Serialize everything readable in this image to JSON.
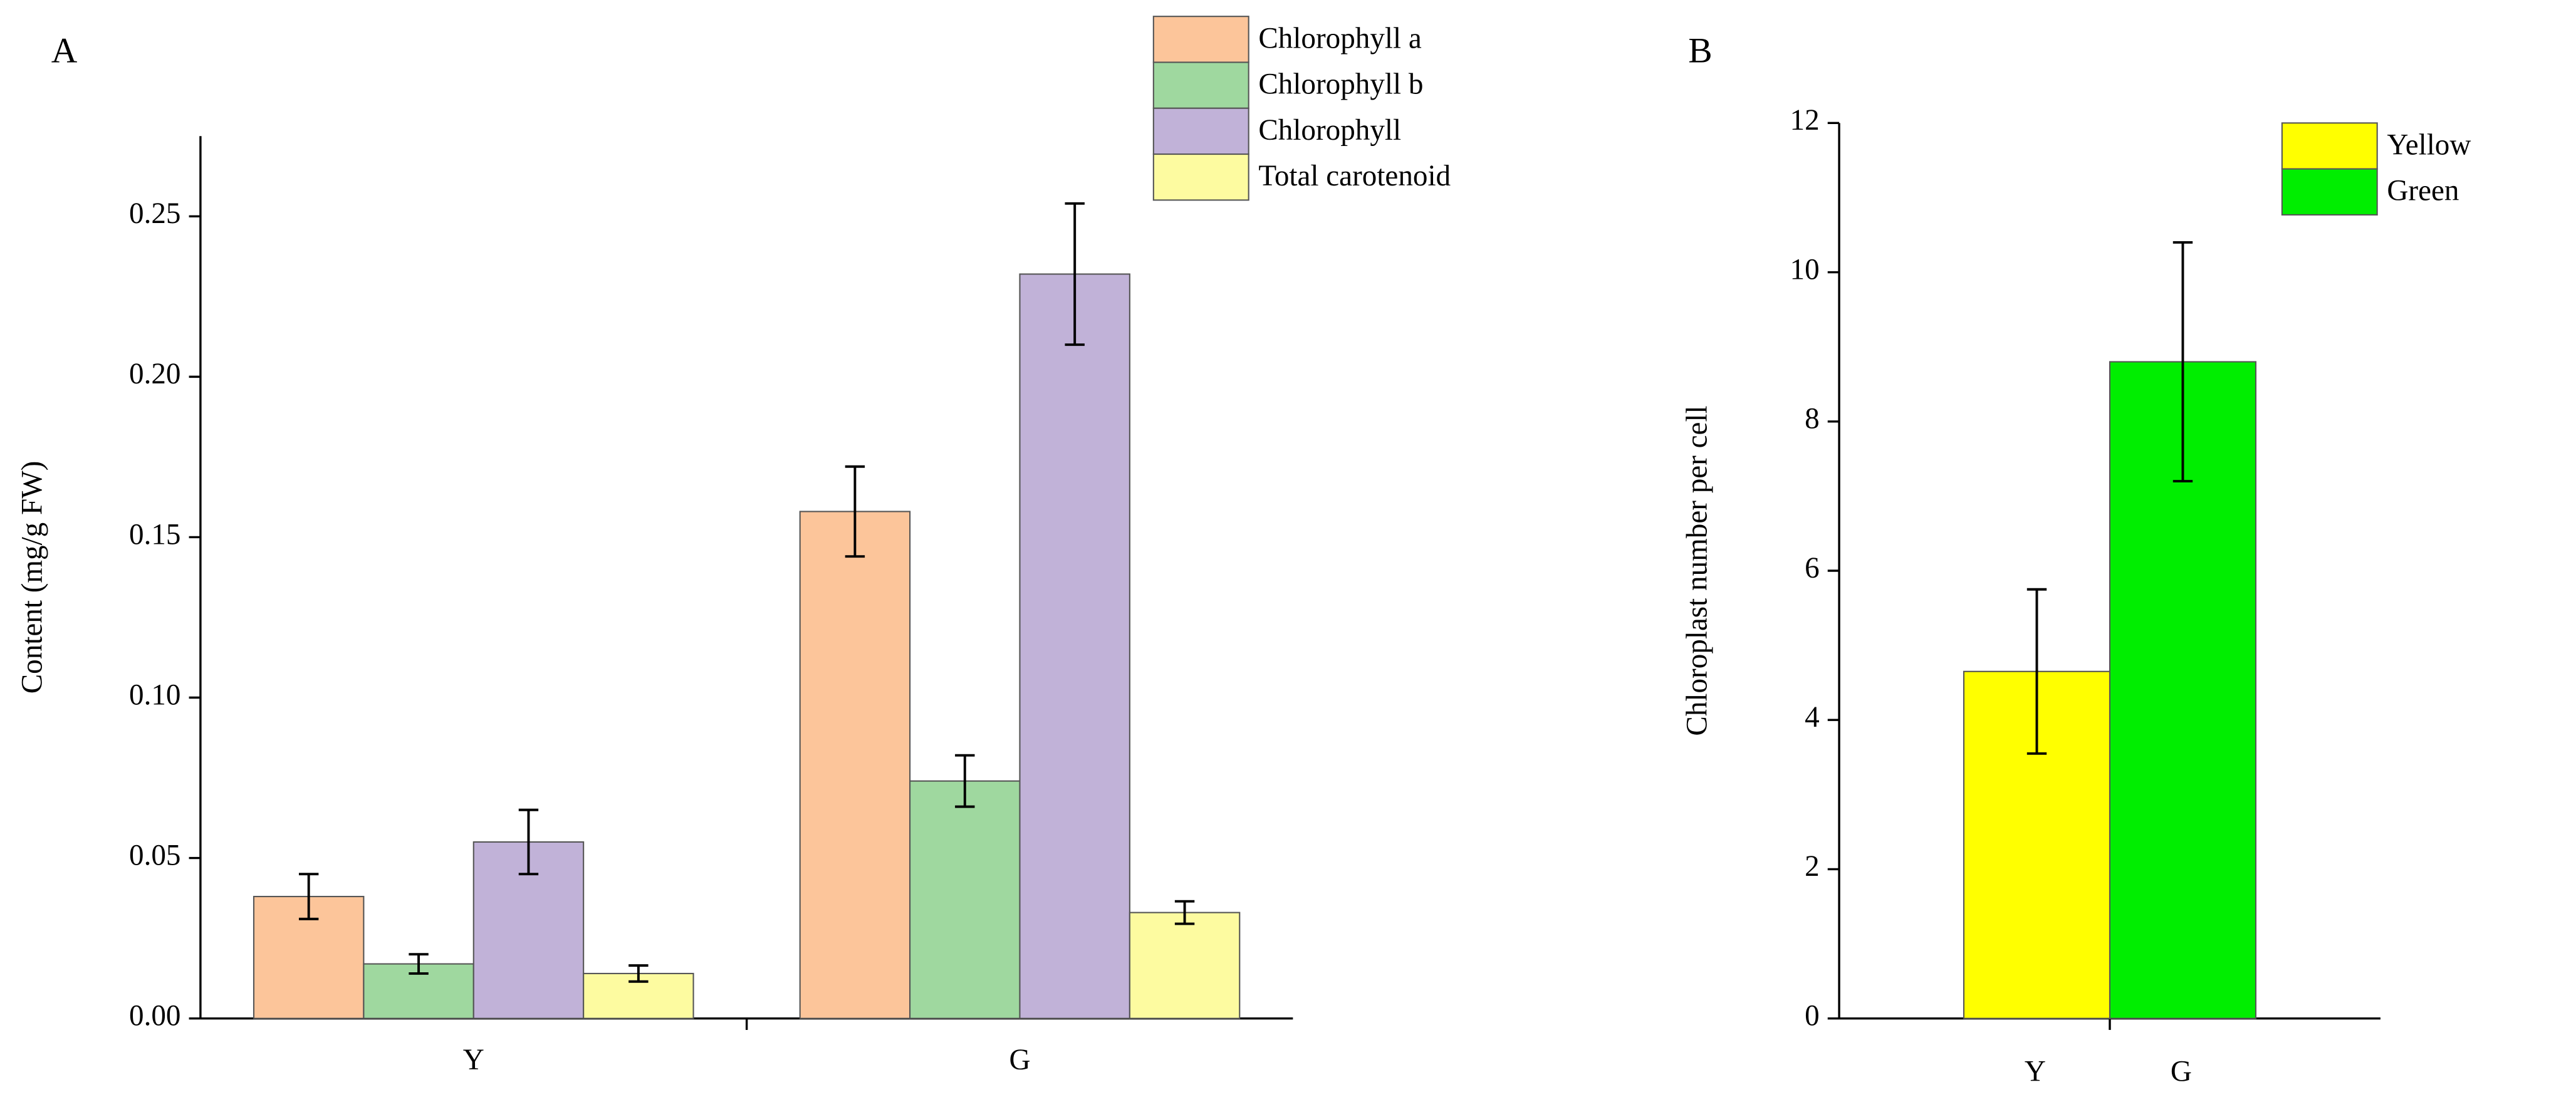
{
  "chart_data": [
    {
      "type": "bar",
      "panel_label": "A",
      "ylabel": "Content (mg/g FW)",
      "categories": [
        "Y",
        "G"
      ],
      "series": [
        {
          "name": "Chlorophyll a",
          "color": "#fcc59a",
          "values": [
            0.038,
            0.158
          ],
          "errors": [
            0.007,
            0.014
          ]
        },
        {
          "name": "Chlorophyll b",
          "color": "#9fd89f",
          "values": [
            0.017,
            0.074
          ],
          "errors": [
            0.003,
            0.008
          ]
        },
        {
          "name": "Chlorophyll",
          "color": "#c1b2d8",
          "values": [
            0.055,
            0.232
          ],
          "errors": [
            0.01,
            0.022
          ]
        },
        {
          "name": "Total carotenoid",
          "color": "#fdfba0",
          "values": [
            0.014,
            0.033
          ],
          "errors": [
            0.0025,
            0.0035
          ]
        }
      ],
      "ylim": [
        0,
        0.275
      ],
      "yticks": [
        {
          "value": 0,
          "label": "0.00"
        },
        {
          "value": 0.05,
          "label": "0.05"
        },
        {
          "value": 0.1,
          "label": "0.10"
        },
        {
          "value": 0.15,
          "label": "0.15"
        },
        {
          "value": 0.2,
          "label": "0.20"
        },
        {
          "value": 0.25,
          "label": "0.25"
        }
      ]
    },
    {
      "type": "bar",
      "panel_label": "B",
      "ylabel": "Chloroplast  number  per cell",
      "categories": [
        "Y",
        "G"
      ],
      "values": [
        4.65,
        8.8
      ],
      "errors": [
        1.1,
        1.6
      ],
      "colors": [
        "#ffff00",
        "#00ee00"
      ],
      "legend": [
        "Yellow",
        "Green"
      ],
      "ylim": [
        0,
        12
      ],
      "yticks": [
        0,
        2,
        4,
        6,
        8,
        10,
        12
      ]
    }
  ]
}
